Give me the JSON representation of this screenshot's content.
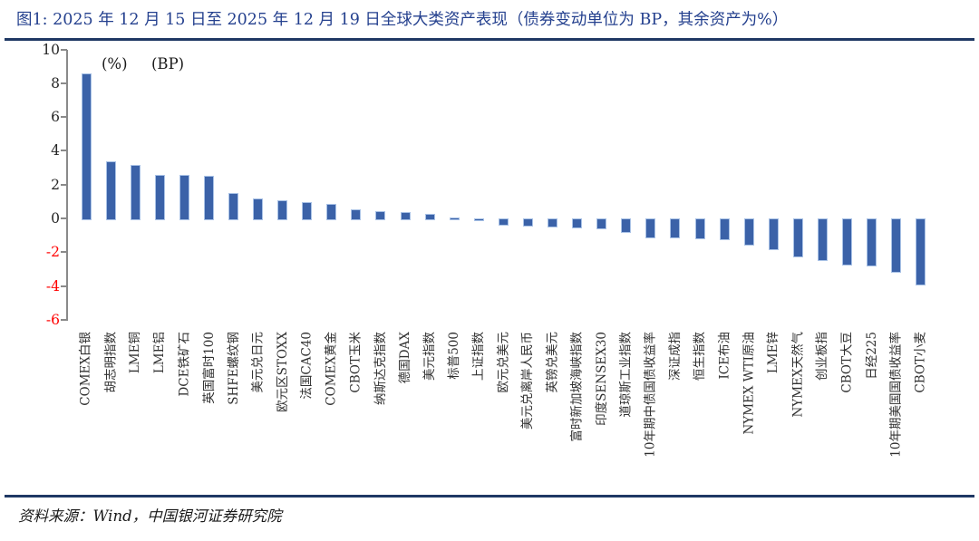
{
  "figure": {
    "title": "图1: 2025 年 12 月 15 日至 2025 年 12 月 19 日全球大类资产表现（债券变动单位为 BP，其余资产为%）",
    "source": "资料来源：Wind，中国银河证券研究院"
  },
  "chart_data": {
    "type": "bar",
    "title": "2025 年 12 月 15 日至 2025 年 12 月 19 日全球大类资产表现",
    "unit_labels": {
      "percent": "(%)",
      "bp": "(BP)"
    },
    "categories": [
      "COMEX白银",
      "胡志明指数",
      "LME铜",
      "LME铝",
      "DCE铁矿石",
      "英国富时100",
      "SHFE螺纹钢",
      "美元兑日元",
      "欧元区STOXX",
      "法国CAC40",
      "COMEX黄金",
      "CBOT玉米",
      "纳斯达克指数",
      "德国DAX",
      "美元指数",
      "标普500",
      "上证指数",
      "欧元兑美元",
      "美元兑离岸人民币",
      "英镑兑美元",
      "富时新加坡海峡指数",
      "印度SENSEX30",
      "道琼斯工业指数",
      "10年期中债国债收益率",
      "深证成指",
      "恒生指数",
      "ICE布油",
      "NYMEX WTI原油",
      "LME锌",
      "NYMEX天然气",
      "创业板指",
      "CBOT大豆",
      "日经225",
      "10年期美国国债收益率",
      "CBOT小麦"
    ],
    "values": [
      8.6,
      3.4,
      3.15,
      2.6,
      2.55,
      2.5,
      1.5,
      1.2,
      1.05,
      0.95,
      0.85,
      0.55,
      0.45,
      0.38,
      0.27,
      0.07,
      -0.04,
      -0.32,
      -0.38,
      -0.43,
      -0.49,
      -0.52,
      -0.75,
      -1.05,
      -1.05,
      -1.15,
      -1.2,
      -1.5,
      -1.75,
      -2.2,
      -2.4,
      -2.7,
      -2.75,
      -3.1,
      -3.85
    ],
    "ylim": [
      -6,
      10
    ],
    "yticks": [
      10,
      8,
      6,
      4,
      2,
      0,
      -2,
      -4,
      -6
    ],
    "grid": false,
    "legend": "none",
    "colors": {
      "bar_fill": "#3B62A8",
      "bar_border": "#A9C2E6",
      "axis": "#8a8a8a",
      "tick_label": "#262626",
      "negative_tick_label": "#FF0000",
      "title_text": "#24408E",
      "divider": "#1F3864"
    }
  }
}
